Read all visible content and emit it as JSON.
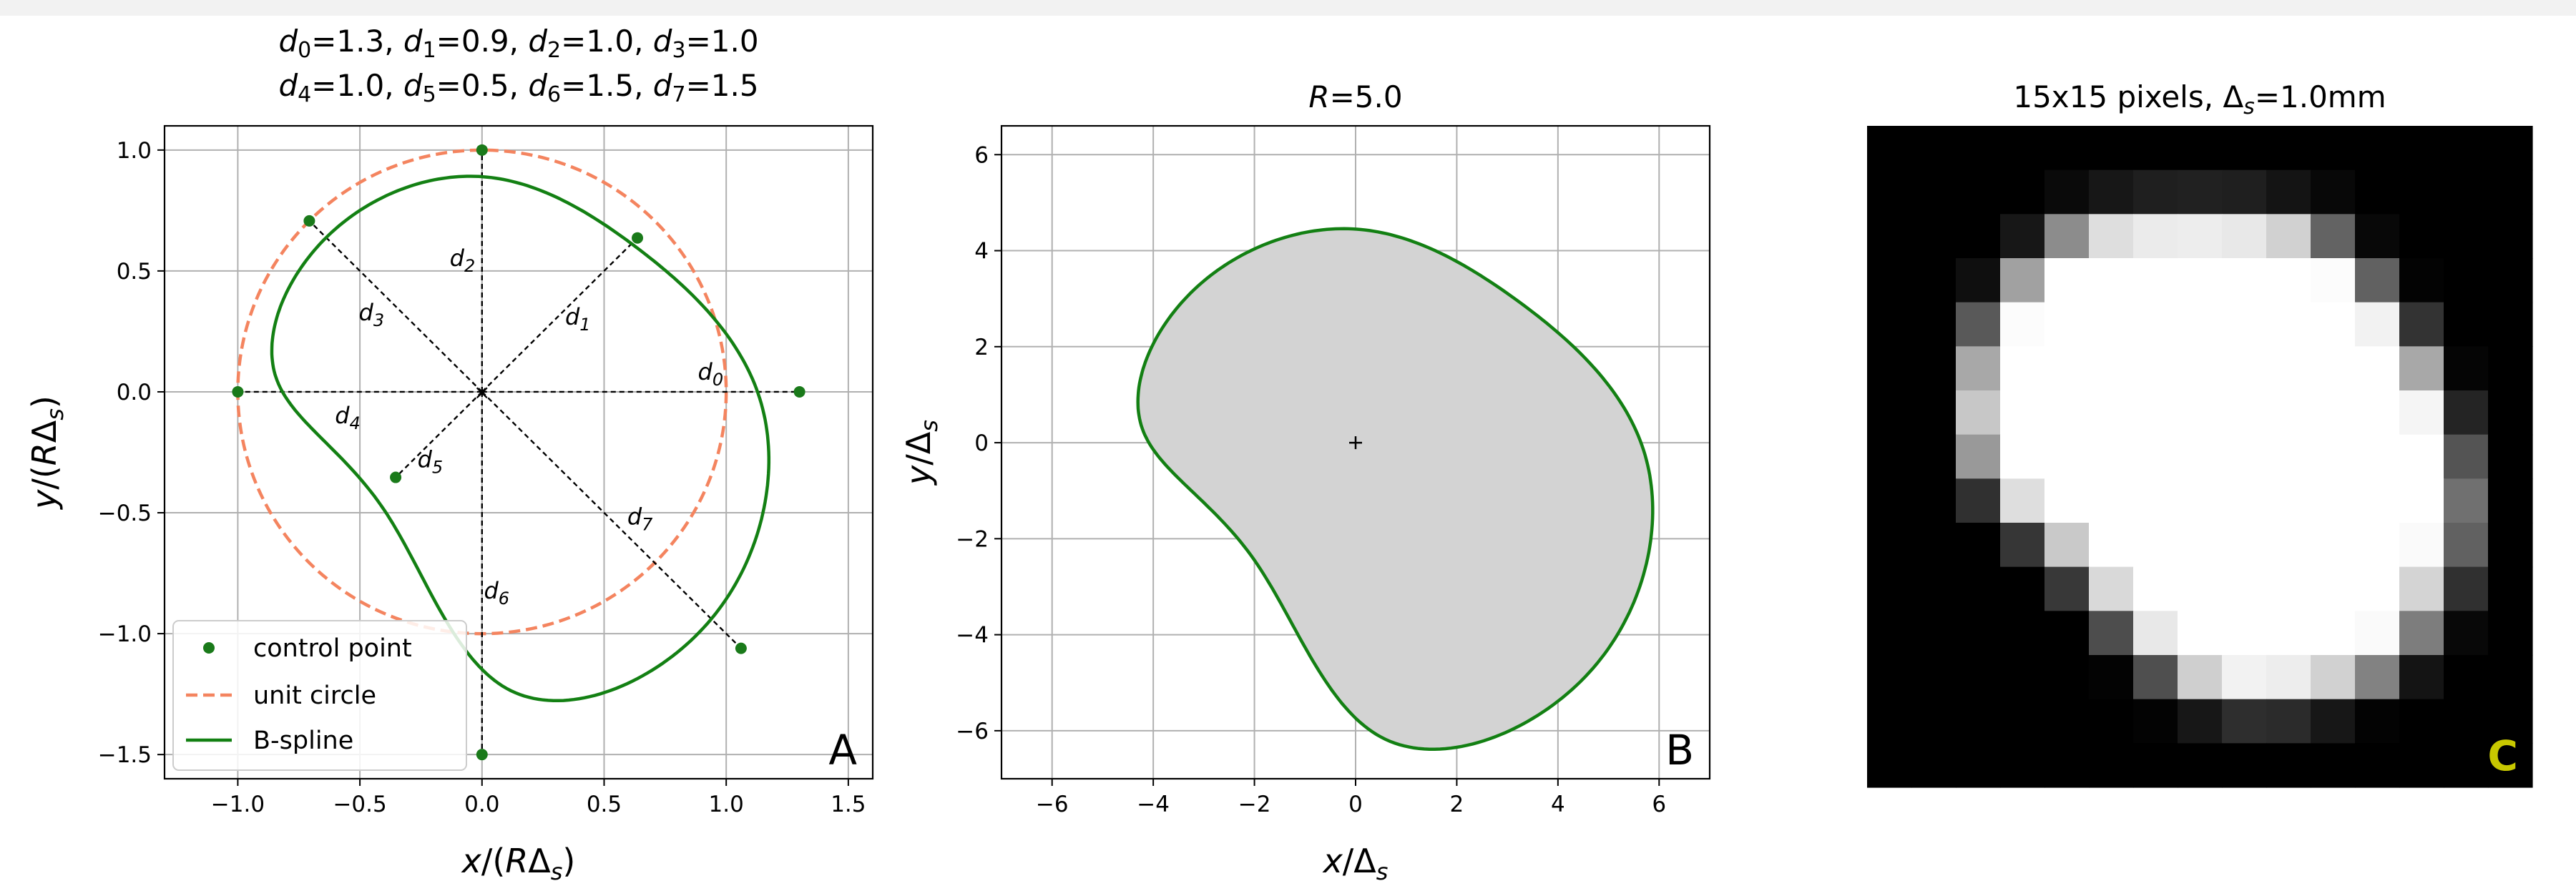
{
  "chart_data": [
    {
      "type": "line",
      "panel_label": "A",
      "title_lines": [
        "d_0=1.3, d_1=0.9, d_2=1.0, d_3=1.0",
        "d_4=1.0, d_5=0.5, d_6=1.5, d_7=1.5"
      ],
      "title_segments": [
        [
          [
            "d",
            "0",
            "=1.3, "
          ],
          [
            "d",
            "1",
            "=0.9, "
          ],
          [
            "d",
            "2",
            "=1.0, "
          ],
          [
            "d",
            "3",
            "=1.0"
          ]
        ],
        [
          [
            "d",
            "4",
            "=1.0, "
          ],
          [
            "d",
            "5",
            "=0.5, "
          ],
          [
            "d",
            "6",
            "=1.5, "
          ],
          [
            "d",
            "7",
            "=1.5"
          ]
        ]
      ],
      "xlabel": "x/(RΔ_s)",
      "ylabel": "y/(RΔ_s)",
      "xlim": [
        -1.3,
        1.6
      ],
      "ylim": [
        -1.6,
        1.1
      ],
      "xticks": [
        -1.0,
        -0.5,
        0.0,
        0.5,
        1.0,
        1.5
      ],
      "xtick_labels": [
        "−1.0",
        "−0.5",
        "0.0",
        "0.5",
        "1.0",
        "1.5"
      ],
      "yticks": [
        -1.5,
        -1.0,
        -0.5,
        0.0,
        0.5,
        1.0
      ],
      "ytick_labels": [
        "−1.5",
        "−1.0",
        "−0.5",
        "0.0",
        "0.5",
        "1.0"
      ],
      "grid": true,
      "legend_position": "lower-left",
      "series": [
        {
          "name": "control point",
          "kind": "scatter",
          "color": "#1a7a1a",
          "x": [
            1.3,
            0.6364,
            0.0,
            -0.7071,
            -1.0,
            -0.3536,
            0.0,
            1.0607
          ],
          "y": [
            0.0,
            0.6364,
            1.0,
            0.7071,
            0.0,
            -0.3536,
            -1.5,
            -1.0607
          ]
        },
        {
          "name": "unit circle",
          "kind": "dashed-circle",
          "color": "#f4845f",
          "radius": 1.0
        },
        {
          "name": "B-spline",
          "kind": "closed-spline",
          "color": "#138013"
        }
      ],
      "radii": {
        "angles_deg": [
          0,
          45,
          90,
          135,
          180,
          225,
          270,
          315
        ],
        "d": [
          1.3,
          0.9,
          1.0,
          1.0,
          1.0,
          0.5,
          1.5,
          1.5
        ],
        "labels": [
          [
            "d",
            "0"
          ],
          [
            "d",
            "1"
          ],
          [
            "d",
            "2"
          ],
          [
            "d",
            "3"
          ],
          [
            "d",
            "4"
          ],
          [
            "d",
            "5"
          ],
          [
            "d",
            "6"
          ],
          [
            "d",
            "7"
          ]
        ]
      },
      "line_colors": {
        "radius_line": "#000000"
      }
    },
    {
      "type": "area",
      "panel_label": "B",
      "title_parts": [
        "R",
        "=5.0"
      ],
      "xlabel": "x/Δ_s",
      "ylabel": "y/Δ_s",
      "xlim": [
        -7,
        7
      ],
      "ylim": [
        -7,
        6.6
      ],
      "xticks": [
        -6,
        -4,
        -2,
        0,
        2,
        4,
        6
      ],
      "xtick_labels": [
        "−6",
        "−4",
        "−2",
        "0",
        "2",
        "4",
        "6"
      ],
      "yticks": [
        -6,
        -4,
        -2,
        0,
        2,
        4,
        6
      ],
      "ytick_labels": [
        "−6",
        "−4",
        "−2",
        "0",
        "2",
        "4",
        "6"
      ],
      "grid": true,
      "scale_R": 5.0,
      "center_marker": [
        0,
        0
      ],
      "colors": {
        "fill": "#d3d3d3",
        "edge": "#138013"
      }
    },
    {
      "type": "heatmap",
      "panel_label": "C",
      "title": "15x15 pixels, Δ_s=1.0mm",
      "title_parts": [
        "15x15 pixels, ",
        "Δ",
        "s",
        "=1.0mm"
      ],
      "rows": 15,
      "cols": 15,
      "colors": {
        "label": "#c8c800",
        "cmap": "gray"
      },
      "values": [
        [
          0.0,
          0.0,
          0.0,
          0.0,
          0.0,
          0.0,
          0.0,
          0.0,
          0.0,
          0.0,
          0.0,
          0.0,
          0.0,
          0.0,
          0.0
        ],
        [
          0.0,
          0.0,
          0.0,
          0.0,
          0.04,
          0.09,
          0.12,
          0.13,
          0.12,
          0.08,
          0.03,
          0.0,
          0.0,
          0.0,
          0.0
        ],
        [
          0.0,
          0.0,
          0.0,
          0.09,
          0.55,
          0.87,
          0.92,
          0.93,
          0.91,
          0.82,
          0.39,
          0.03,
          0.0,
          0.0,
          0.0
        ],
        [
          0.0,
          0.0,
          0.06,
          0.63,
          1.0,
          1.0,
          1.0,
          1.0,
          1.0,
          1.0,
          0.99,
          0.38,
          0.01,
          0.0,
          0.0
        ],
        [
          0.0,
          0.0,
          0.35,
          0.99,
          1.0,
          1.0,
          1.0,
          1.0,
          1.0,
          1.0,
          1.0,
          0.95,
          0.2,
          0.0,
          0.0
        ],
        [
          0.0,
          0.0,
          0.66,
          1.0,
          1.0,
          1.0,
          1.0,
          1.0,
          1.0,
          1.0,
          1.0,
          1.0,
          0.66,
          0.02,
          0.0
        ],
        [
          0.0,
          0.0,
          0.78,
          1.0,
          1.0,
          1.0,
          1.0,
          1.0,
          1.0,
          1.0,
          1.0,
          1.0,
          0.96,
          0.14,
          0.0
        ],
        [
          0.0,
          0.0,
          0.6,
          1.0,
          1.0,
          1.0,
          1.0,
          1.0,
          1.0,
          1.0,
          1.0,
          1.0,
          1.0,
          0.33,
          0.0
        ],
        [
          0.0,
          0.0,
          0.19,
          0.87,
          1.0,
          1.0,
          1.0,
          1.0,
          1.0,
          1.0,
          1.0,
          1.0,
          1.0,
          0.44,
          0.0
        ],
        [
          0.0,
          0.0,
          0.0,
          0.21,
          0.79,
          1.0,
          1.0,
          1.0,
          1.0,
          1.0,
          1.0,
          1.0,
          0.98,
          0.38,
          0.0
        ],
        [
          0.0,
          0.0,
          0.0,
          0.0,
          0.22,
          0.85,
          1.0,
          1.0,
          1.0,
          1.0,
          1.0,
          1.0,
          0.83,
          0.19,
          0.0
        ],
        [
          0.0,
          0.0,
          0.0,
          0.0,
          0.0,
          0.3,
          0.91,
          1.0,
          1.0,
          1.0,
          1.0,
          0.98,
          0.49,
          0.03,
          0.0
        ],
        [
          0.0,
          0.0,
          0.0,
          0.0,
          0.0,
          0.01,
          0.31,
          0.81,
          0.95,
          0.93,
          0.82,
          0.51,
          0.08,
          0.0,
          0.0
        ],
        [
          0.0,
          0.0,
          0.0,
          0.0,
          0.0,
          0.0,
          0.01,
          0.09,
          0.18,
          0.17,
          0.09,
          0.01,
          0.0,
          0.0,
          0.0
        ],
        [
          0.0,
          0.0,
          0.0,
          0.0,
          0.0,
          0.0,
          0.0,
          0.0,
          0.0,
          0.0,
          0.0,
          0.0,
          0.0,
          0.0,
          0.0
        ]
      ]
    }
  ]
}
